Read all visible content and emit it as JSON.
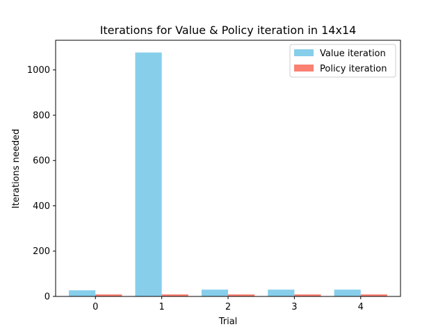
{
  "chart_data": {
    "type": "bar",
    "title": "Iterations for Value & Policy iteration in 14x14",
    "xlabel": "Trial",
    "ylabel": "Iterations needed",
    "categories": [
      "0",
      "1",
      "2",
      "3",
      "4"
    ],
    "series": [
      {
        "name": "Value iteration",
        "values": [
          27,
          1077,
          30,
          30,
          30
        ],
        "color": "#87CEEB"
      },
      {
        "name": "Policy iteration",
        "values": [
          9,
          9,
          9,
          9,
          9
        ],
        "color": "#FA8072"
      }
    ],
    "ylim": [
      0,
      1131
    ],
    "yticks": [
      0,
      200,
      400,
      600,
      800,
      1000
    ],
    "grid": false,
    "legend": "upper right"
  }
}
